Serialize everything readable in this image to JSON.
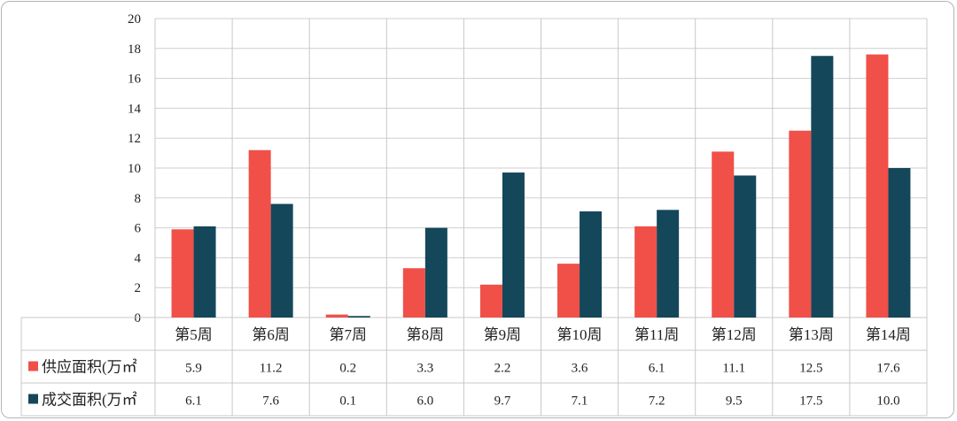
{
  "chart_data": {
    "type": "bar",
    "categories": [
      "第5周",
      "第6周",
      "第7周",
      "第8周",
      "第9周",
      "第10周",
      "第11周",
      "第12周",
      "第13周",
      "第14周"
    ],
    "series": [
      {
        "name": "供应面积(万㎡",
        "color": "#f05048",
        "values": [
          5.9,
          11.2,
          0.2,
          3.3,
          2.2,
          3.6,
          6.1,
          11.1,
          12.5,
          17.6
        ]
      },
      {
        "name": "成交面积(万㎡",
        "color": "#14475a",
        "values": [
          6.1,
          7.6,
          0.1,
          6.0,
          9.7,
          7.1,
          7.2,
          9.5,
          17.5,
          10.0
        ]
      }
    ],
    "value_labels": [
      [
        "5.9",
        "11.2",
        "0.2",
        "3.3",
        "2.2",
        "3.6",
        "6.1",
        "11.1",
        "12.5",
        "17.6"
      ],
      [
        "6.1",
        "7.6",
        "0.1",
        "6.0",
        "9.7",
        "7.1",
        "7.2",
        "9.5",
        "17.5",
        "10.0"
      ]
    ],
    "ylim": [
      0,
      20
    ],
    "yticks": [
      "0",
      "2",
      "4",
      "6",
      "8",
      "10",
      "12",
      "14",
      "16",
      "18",
      "20"
    ],
    "grid": true,
    "legend": "data-table-left"
  }
}
